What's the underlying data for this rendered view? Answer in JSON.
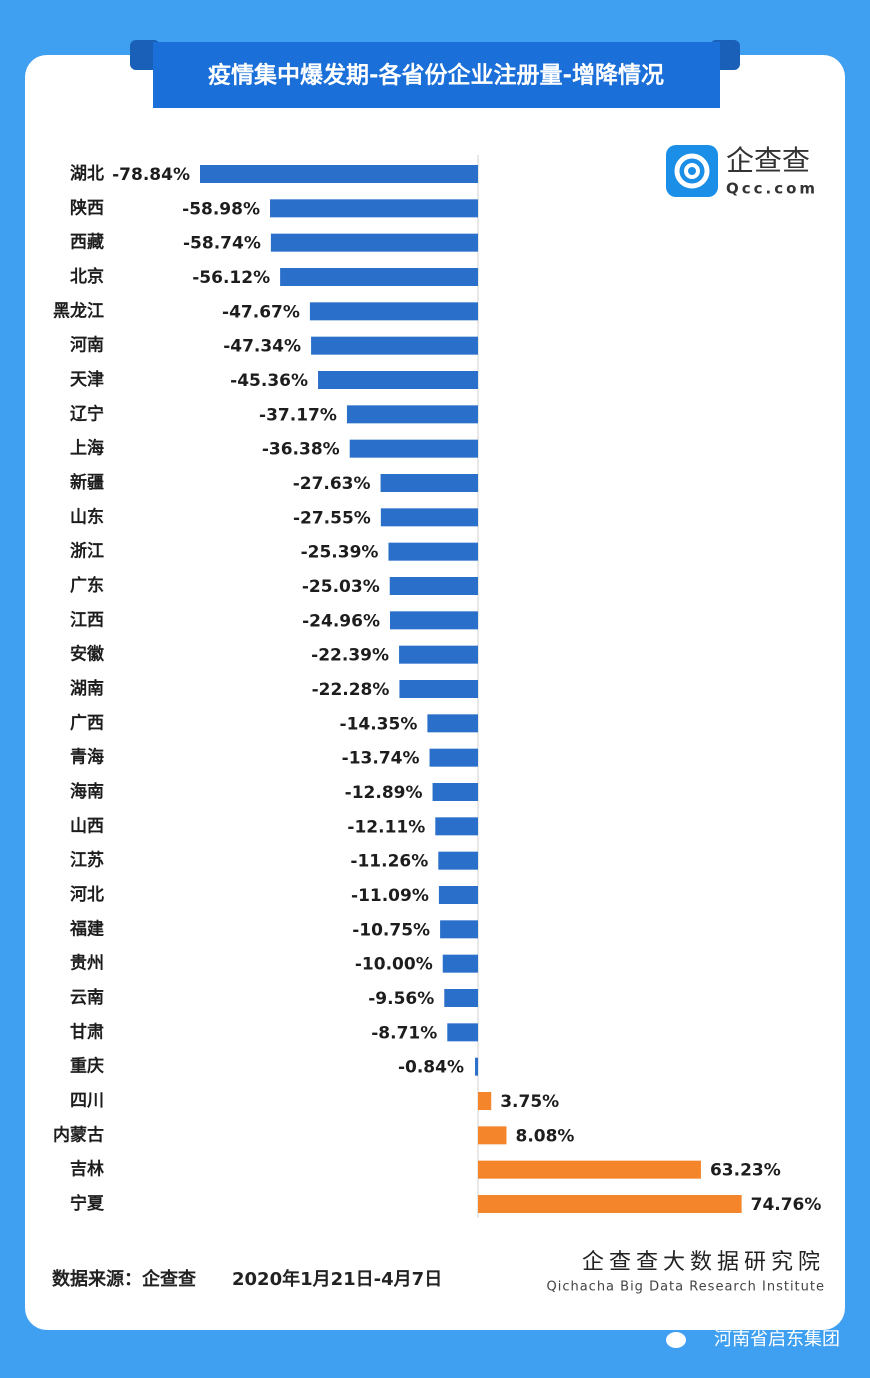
{
  "chart_data": {
    "type": "bar",
    "orientation": "horizontal",
    "title": "疫情集中爆发期-各省份企业注册量-增降情况",
    "categories": [
      "湖北",
      "陕西",
      "西藏",
      "北京",
      "黑龙江",
      "河南",
      "天津",
      "辽宁",
      "上海",
      "新疆",
      "山东",
      "浙江",
      "广东",
      "江西",
      "安徽",
      "湖南",
      "广西",
      "青海",
      "海南",
      "山西",
      "江苏",
      "河北",
      "福建",
      "贵州",
      "云南",
      "甘肃",
      "重庆",
      "四川",
      "内蒙古",
      "吉林",
      "宁夏"
    ],
    "values": [
      -78.84,
      -58.98,
      -58.74,
      -56.12,
      -47.67,
      -47.34,
      -45.36,
      -37.17,
      -36.38,
      -27.63,
      -27.55,
      -25.39,
      -25.03,
      -24.96,
      -22.39,
      -22.28,
      -14.35,
      -13.74,
      -12.89,
      -12.11,
      -11.26,
      -11.09,
      -10.75,
      -10.0,
      -9.56,
      -8.71,
      -0.84,
      3.75,
      8.08,
      63.23,
      74.76
    ],
    "value_labels": [
      "-78.84%",
      "-58.98%",
      "-58.74%",
      "-56.12%",
      "-47.67%",
      "-47.34%",
      "-45.36%",
      "-37.17%",
      "-36.38%",
      "-27.63%",
      "-27.55%",
      "-25.39%",
      "-25.03%",
      "-24.96%",
      "-22.39%",
      "-22.28%",
      "-14.35%",
      "-13.74%",
      "-12.89%",
      "-12.11%",
      "-11.26%",
      "-11.09%",
      "-10.75%",
      "-10.00%",
      "-9.56%",
      "-8.71%",
      "-0.84%",
      "3.75%",
      "8.08%",
      "63.23%",
      "74.76%"
    ],
    "color": "#2a6fc9",
    "positive_color": "#f5852b",
    "source": "数据来源：企查查",
    "date_range": "2020年1月21日-4月7日"
  },
  "logo": {
    "name": "企查查",
    "domain": "Qcc.com"
  },
  "institute": {
    "name": "企查查大数据研究院",
    "english": "Qichacha Big Data Research Institute"
  },
  "watermark": "河南省启东集团"
}
